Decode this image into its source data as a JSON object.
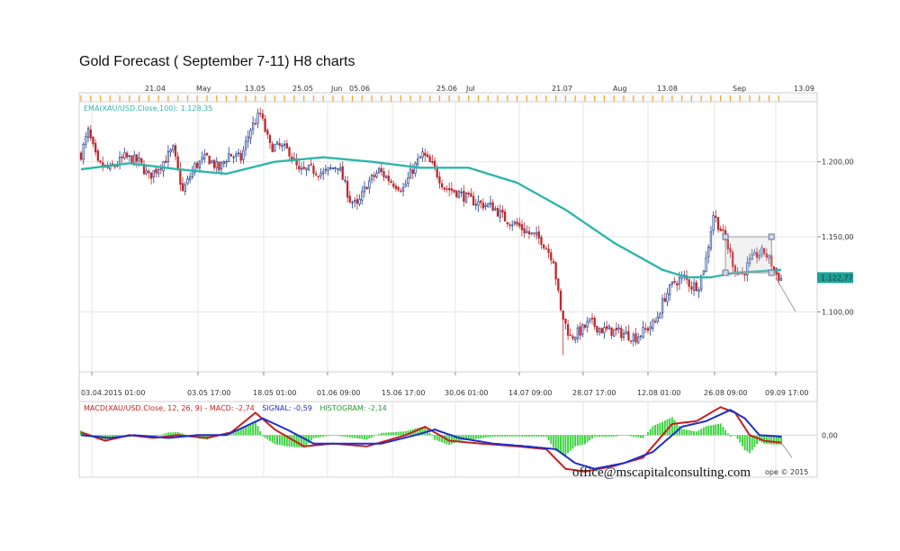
{
  "title": "Gold Forecast ( September 7-11) H8 charts",
  "watermark": "office@mscapitalconsulting.com",
  "copyright": "ope © 2015",
  "colors": {
    "up_candle": "#1f3f8f",
    "down_candle": "#c0282d",
    "ema": "#2fb5ad",
    "macd": "#c81e1e",
    "signal": "#1e2fc8",
    "hist": "#36d13a",
    "last_price_badge": "#1aa39b",
    "grid": "#e6e6e6",
    "ruler": "#f3a324"
  },
  "chart_data": [
    {
      "type": "candlestick",
      "indicator_label": "EMA(XAU/USD.Close,100): 1.128,35",
      "top_axis_labels": [
        "21.04",
        "May",
        "13.05",
        "25.05",
        "Jun",
        "05.06",
        "25.06",
        "Jul",
        "21.07",
        "Aug",
        "13.08",
        "Sep",
        "13.09"
      ],
      "bottom_axis_labels": [
        "03.04.2015 01:00",
        "03.05 17:00",
        "18.05 01:00",
        "01.06 09:00",
        "15.06 17:00",
        "30.06 01:00",
        "14.07 09:00",
        "28.07 17:00",
        "12.08 01:00",
        "26.08 09:00",
        "09.09 17:00"
      ],
      "y_tick_labels": [
        "1.200,00",
        "1.150,00",
        "1.100,00"
      ],
      "y_ticks": [
        1200,
        1150,
        1100
      ],
      "ylim": [
        1060,
        1240
      ],
      "last_price": 1122.77,
      "last_price_label": "1.122,77",
      "anchors_close": [
        [
          0,
          1205
        ],
        [
          3,
          1220
        ],
        [
          7,
          1198
        ],
        [
          12,
          1195
        ],
        [
          18,
          1203
        ],
        [
          24,
          1200
        ],
        [
          28,
          1190
        ],
        [
          33,
          1198
        ],
        [
          38,
          1208
        ],
        [
          42,
          1180
        ],
        [
          47,
          1197
        ],
        [
          52,
          1203
        ],
        [
          57,
          1195
        ],
        [
          61,
          1205
        ],
        [
          66,
          1202
        ],
        [
          70,
          1222
        ],
        [
          74,
          1232
        ],
        [
          78,
          1210
        ],
        [
          82,
          1210
        ],
        [
          86,
          1207
        ],
        [
          90,
          1193
        ],
        [
          95,
          1195
        ],
        [
          100,
          1192
        ],
        [
          106,
          1198
        ],
        [
          111,
          1175
        ],
        [
          114,
          1170
        ],
        [
          118,
          1185
        ],
        [
          123,
          1194
        ],
        [
          128,
          1187
        ],
        [
          133,
          1182
        ],
        [
          137,
          1195
        ],
        [
          141,
          1205
        ],
        [
          146,
          1195
        ],
        [
          150,
          1183
        ],
        [
          155,
          1180
        ],
        [
          160,
          1175
        ],
        [
          165,
          1172
        ],
        [
          170,
          1170
        ],
        [
          175,
          1162
        ],
        [
          180,
          1158
        ],
        [
          185,
          1152
        ],
        [
          190,
          1148
        ],
        [
          195,
          1135
        ],
        [
          198,
          1100
        ],
        [
          202,
          1083
        ],
        [
          206,
          1087
        ],
        [
          210,
          1093
        ],
        [
          215,
          1088
        ],
        [
          220,
          1087
        ],
        [
          225,
          1085
        ],
        [
          229,
          1083
        ],
        [
          233,
          1088
        ],
        [
          237,
          1093
        ],
        [
          241,
          1110
        ],
        [
          245,
          1120
        ],
        [
          249,
          1123
        ],
        [
          252,
          1117
        ],
        [
          255,
          1118
        ],
        [
          258,
          1135
        ],
        [
          261,
          1165
        ],
        [
          264,
          1155
        ],
        [
          267,
          1143
        ],
        [
          270,
          1128
        ],
        [
          273,
          1125
        ],
        [
          276,
          1133
        ],
        [
          279,
          1138
        ],
        [
          282,
          1140
        ],
        [
          285,
          1132
        ],
        [
          287,
          1125
        ],
        [
          289,
          1122
        ]
      ],
      "ema_points": [
        [
          0,
          1195
        ],
        [
          20,
          1199
        ],
        [
          40,
          1195
        ],
        [
          60,
          1192
        ],
        [
          80,
          1200
        ],
        [
          100,
          1203
        ],
        [
          120,
          1200
        ],
        [
          140,
          1196
        ],
        [
          160,
          1196
        ],
        [
          180,
          1186
        ],
        [
          200,
          1168
        ],
        [
          220,
          1146
        ],
        [
          240,
          1128
        ],
        [
          250,
          1123
        ],
        [
          260,
          1123
        ],
        [
          270,
          1126
        ],
        [
          289,
          1128
        ]
      ],
      "candle_count": 290,
      "spike_low": {
        "index": 199,
        "low": 1071
      },
      "selection_box": {
        "start": 266,
        "end": 285,
        "low": 1126,
        "high": 1150
      },
      "projection_end": {
        "index": 295,
        "price": 1100
      }
    },
    {
      "type": "macd",
      "indicator_label": "MACD(XAU/USD.Close, 12, 26, 9) - MACD: -2,74  SIGNAL: -0,59  HISTOGRAM: -2,14",
      "label_parts": {
        "macd": "MACD(XAU/USD.Close, 12, 26, 9) - MACD: -2,74",
        "signal": "SIGNAL: -0,59",
        "histogram": "HISTOGRAM: -2,14"
      },
      "y_tick_labels": [
        "0,00"
      ],
      "y_ticks": [
        0
      ],
      "ylim": [
        -15,
        12
      ],
      "macd_anchors": [
        [
          0,
          1
        ],
        [
          10,
          -2
        ],
        [
          20,
          0
        ],
        [
          30,
          -1
        ],
        [
          40,
          0
        ],
        [
          52,
          -1
        ],
        [
          62,
          1
        ],
        [
          72,
          8
        ],
        [
          80,
          2
        ],
        [
          92,
          -4
        ],
        [
          104,
          -3
        ],
        [
          118,
          -4
        ],
        [
          134,
          0
        ],
        [
          142,
          3
        ],
        [
          152,
          -2
        ],
        [
          165,
          -3
        ],
        [
          180,
          -4
        ],
        [
          192,
          -5
        ],
        [
          200,
          -12
        ],
        [
          208,
          -13
        ],
        [
          220,
          -11
        ],
        [
          232,
          -8
        ],
        [
          244,
          4
        ],
        [
          254,
          5
        ],
        [
          264,
          10
        ],
        [
          270,
          8
        ],
        [
          276,
          0
        ],
        [
          282,
          -2
        ],
        [
          289,
          -2.7
        ]
      ],
      "signal_anchors": [
        [
          0,
          0
        ],
        [
          12,
          -1
        ],
        [
          22,
          0
        ],
        [
          36,
          -1
        ],
        [
          48,
          0
        ],
        [
          60,
          0
        ],
        [
          75,
          6
        ],
        [
          85,
          2
        ],
        [
          96,
          -3
        ],
        [
          110,
          -3
        ],
        [
          124,
          -3
        ],
        [
          138,
          0
        ],
        [
          146,
          2
        ],
        [
          156,
          -1
        ],
        [
          170,
          -3
        ],
        [
          184,
          -4
        ],
        [
          196,
          -5
        ],
        [
          204,
          -10
        ],
        [
          212,
          -12
        ],
        [
          224,
          -10
        ],
        [
          236,
          -6
        ],
        [
          248,
          3
        ],
        [
          258,
          5
        ],
        [
          268,
          9
        ],
        [
          274,
          6
        ],
        [
          280,
          0
        ],
        [
          286,
          -0.3
        ],
        [
          289,
          -0.6
        ]
      ]
    }
  ]
}
